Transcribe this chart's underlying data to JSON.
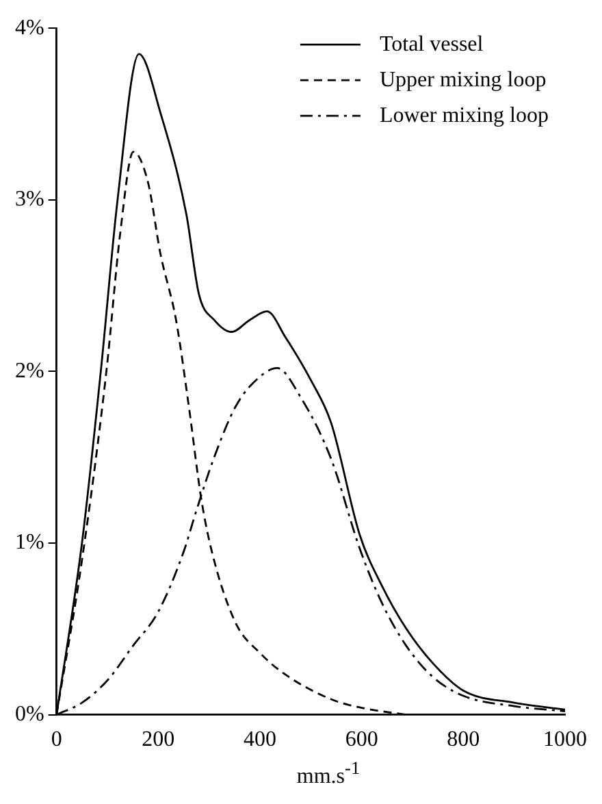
{
  "chart_data": {
    "type": "line",
    "xlabel": "mm.s$^{-1}$",
    "xlim": [
      0,
      1000
    ],
    "xticks": [
      0,
      200,
      400,
      600,
      800,
      1000
    ],
    "ylim": [
      0,
      4
    ],
    "yticks": [
      {
        "value": 0,
        "label": "0%"
      },
      {
        "value": 1,
        "label": "1%"
      },
      {
        "value": 2,
        "label": "2%"
      },
      {
        "value": 3,
        "label": "3%"
      },
      {
        "value": 4,
        "label": "4%"
      }
    ],
    "grid": false,
    "legend": "top right",
    "marker": "none",
    "series": [
      {
        "name": "Total vessel",
        "color": "#000000",
        "line_style": "solid",
        "x": [
          0,
          50,
          87,
          120,
          162,
          205,
          255,
          280,
          310,
          344,
          380,
          414,
          450,
          500,
          540,
          596,
          640,
          688,
          740,
          800,
          900,
          1000
        ],
        "values": [
          0,
          1.0,
          2.0,
          3.0,
          3.85,
          3.5,
          2.92,
          2.45,
          2.3,
          2.23,
          2.3,
          2.35,
          2.2,
          1.95,
          1.7,
          1.05,
          0.75,
          0.5,
          0.3,
          0.14,
          0.07,
          0.03
        ]
      },
      {
        "name": "Upper mixing loop",
        "color": "#000000",
        "line_style": "dashed",
        "x": [
          0,
          50,
          98,
          125,
          151,
          180,
          204,
          235,
          260,
          285,
          308,
          353,
          400,
          447,
          540,
          600,
          688
        ],
        "values": [
          0,
          0.9,
          2.0,
          2.8,
          3.28,
          3.1,
          2.69,
          2.3,
          1.8,
          1.25,
          0.92,
          0.53,
          0.36,
          0.24,
          0.09,
          0.04,
          0
        ]
      },
      {
        "name": "Lower mixing loop",
        "color": "#000000",
        "line_style": "dashdot",
        "x": [
          0,
          50,
          100,
          150,
          200,
          250,
          274,
          310,
          353,
          400,
          434,
          480,
          540,
          596,
          640,
          688,
          740,
          800,
          900,
          1000
        ],
        "values": [
          0,
          0.07,
          0.2,
          0.4,
          0.6,
          0.95,
          1.18,
          1.5,
          1.8,
          1.97,
          2.02,
          1.85,
          1.49,
          0.97,
          0.65,
          0.4,
          0.22,
          0.11,
          0.05,
          0.02
        ]
      }
    ]
  }
}
